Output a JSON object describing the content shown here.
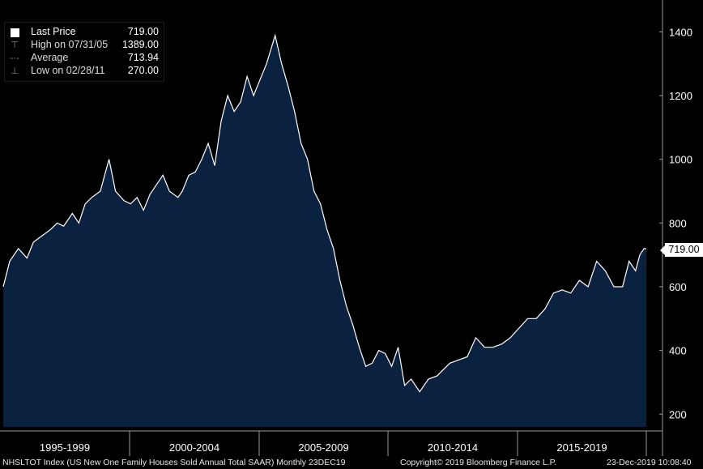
{
  "legend": {
    "last_price": {
      "label": "Last Price",
      "value": "719.00"
    },
    "high": {
      "label": "High on 07/31/05",
      "value": "1389.00"
    },
    "average": {
      "label": "Average",
      "value": "713.94"
    },
    "low": {
      "label": "Low on 02/28/11",
      "value": "270.00"
    }
  },
  "price_tag": "719.00",
  "footer": {
    "ticker": "NHSLTOT Index (US New One Family Houses Sold Annual Total SAAR)  Monthly 23DEC19",
    "copyright": "Copyright© 2019 Bloomberg Finance L.P.",
    "timestamp": "23-Dec-2019 10:08:40"
  },
  "colors": {
    "area_fill": "#0b2140",
    "line": "#ffffff",
    "background": "#000000",
    "grid": "#3a3a3a"
  },
  "chart_data": {
    "type": "area",
    "y_axis_side": "right",
    "ylim": [
      160,
      1500
    ],
    "yticks": [
      200,
      400,
      600,
      800,
      1000,
      1200,
      1400
    ],
    "ytick_labels": [
      "200",
      "400",
      "600",
      "800",
      "1000",
      "1200",
      "1400"
    ],
    "x_range": [
      "1995-01",
      "2019-11"
    ],
    "x_period_labels": [
      "1995-1999",
      "2000-2004",
      "2005-2009",
      "2010-2014",
      "2015-2019"
    ],
    "series": [
      {
        "values": [
          [
            "1995-01",
            600
          ],
          [
            "1995-04",
            680
          ],
          [
            "1995-08",
            720
          ],
          [
            "1995-12",
            690
          ],
          [
            "1996-03",
            740
          ],
          [
            "1996-07",
            760
          ],
          [
            "1996-11",
            780
          ],
          [
            "1997-02",
            800
          ],
          [
            "1997-05",
            790
          ],
          [
            "1997-09",
            830
          ],
          [
            "1997-12",
            800
          ],
          [
            "1998-03",
            860
          ],
          [
            "1998-06",
            880
          ],
          [
            "1998-10",
            900
          ],
          [
            "1998-12",
            950
          ],
          [
            "1999-02",
            1000
          ],
          [
            "1999-05",
            900
          ],
          [
            "1999-09",
            870
          ],
          [
            "1999-12",
            860
          ],
          [
            "2000-03",
            880
          ],
          [
            "2000-06",
            840
          ],
          [
            "2000-09",
            890
          ],
          [
            "2000-12",
            920
          ],
          [
            "2001-03",
            950
          ],
          [
            "2001-06",
            900
          ],
          [
            "2001-10",
            880
          ],
          [
            "2001-12",
            900
          ],
          [
            "2002-03",
            950
          ],
          [
            "2002-06",
            960
          ],
          [
            "2002-09",
            1000
          ],
          [
            "2002-12",
            1050
          ],
          [
            "2003-03",
            980
          ],
          [
            "2003-06",
            1120
          ],
          [
            "2003-09",
            1200
          ],
          [
            "2003-12",
            1150
          ],
          [
            "2004-03",
            1180
          ],
          [
            "2004-06",
            1260
          ],
          [
            "2004-09",
            1200
          ],
          [
            "2004-12",
            1250
          ],
          [
            "2005-03",
            1300
          ],
          [
            "2005-07",
            1389
          ],
          [
            "2005-10",
            1300
          ],
          [
            "2006-01",
            1230
          ],
          [
            "2006-04",
            1150
          ],
          [
            "2006-07",
            1050
          ],
          [
            "2006-10",
            1000
          ],
          [
            "2007-01",
            900
          ],
          [
            "2007-04",
            860
          ],
          [
            "2007-07",
            780
          ],
          [
            "2007-10",
            720
          ],
          [
            "2008-01",
            620
          ],
          [
            "2008-04",
            540
          ],
          [
            "2008-07",
            480
          ],
          [
            "2008-10",
            410
          ],
          [
            "2009-01",
            350
          ],
          [
            "2009-04",
            360
          ],
          [
            "2009-07",
            400
          ],
          [
            "2009-10",
            390
          ],
          [
            "2010-01",
            350
          ],
          [
            "2010-04",
            410
          ],
          [
            "2010-07",
            290
          ],
          [
            "2010-10",
            310
          ],
          [
            "2011-02",
            270
          ],
          [
            "2011-06",
            310
          ],
          [
            "2011-10",
            320
          ],
          [
            "2012-01",
            340
          ],
          [
            "2012-04",
            360
          ],
          [
            "2012-08",
            370
          ],
          [
            "2012-12",
            380
          ],
          [
            "2013-04",
            440
          ],
          [
            "2013-08",
            410
          ],
          [
            "2013-12",
            410
          ],
          [
            "2014-04",
            420
          ],
          [
            "2014-08",
            440
          ],
          [
            "2014-12",
            470
          ],
          [
            "2015-04",
            500
          ],
          [
            "2015-08",
            500
          ],
          [
            "2015-12",
            530
          ],
          [
            "2016-04",
            580
          ],
          [
            "2016-08",
            590
          ],
          [
            "2016-12",
            580
          ],
          [
            "2017-04",
            620
          ],
          [
            "2017-08",
            600
          ],
          [
            "2017-12",
            680
          ],
          [
            "2018-04",
            650
          ],
          [
            "2018-08",
            600
          ],
          [
            "2018-12",
            600
          ],
          [
            "2019-03",
            680
          ],
          [
            "2019-06",
            650
          ],
          [
            "2019-08",
            700
          ],
          [
            "2019-10",
            720
          ],
          [
            "2019-11",
            719
          ]
        ]
      }
    ]
  }
}
